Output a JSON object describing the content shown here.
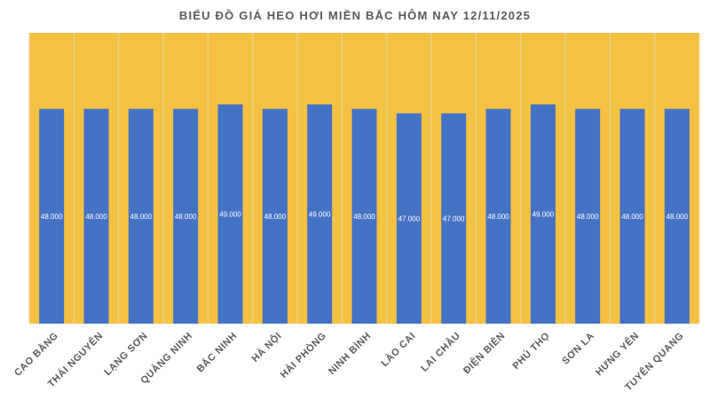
{
  "chart_data": {
    "type": "bar",
    "title": "BIỂU ĐỒ GIÁ HEO HƠI MIỀN BẮC HÔM NAY 12/11/2025",
    "xlabel": "",
    "ylabel": "",
    "categories": [
      "CAO BẰNG",
      "THÁI NGUYÊN",
      "LẠNG SƠN",
      "QUẢNG NINH",
      "BẮC NINH",
      "HÀ NỘI",
      "HẢI PHÒNG",
      "NINH BÌNH",
      "LÀO CAI",
      "LAI CHÂU",
      "ĐIỆN BIÊN",
      "PHÚ THỌ",
      "SƠN LA",
      "HƯNG YÊN",
      "TUYÊN QUANG"
    ],
    "values": [
      48000,
      48000,
      48000,
      48000,
      49000,
      48000,
      49000,
      48000,
      47000,
      47000,
      48000,
      49000,
      48000,
      48000,
      48000
    ],
    "data_labels": [
      "48.000",
      "48.000",
      "48.000",
      "48.000",
      "49.000",
      "48.000",
      "49.000",
      "48.000",
      "47.000",
      "47.000",
      "48.000",
      "49.000",
      "48.000",
      "48.000",
      "48.000"
    ],
    "ylim": [
      0,
      65000
    ],
    "y_axis_visible": false,
    "grid": "vertical separators between categories",
    "legend": "none",
    "colors": {
      "bar": "#4472C4",
      "plot_background": "#F4C142",
      "separator": "#E8D9A8",
      "text": "#595959"
    }
  }
}
